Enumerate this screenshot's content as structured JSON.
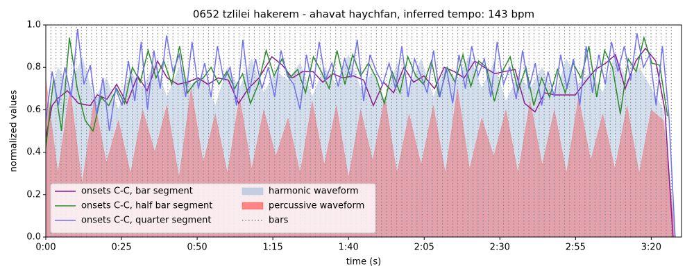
{
  "chart_data": {
    "type": "line",
    "title": "0652 tzlilei hakerem - ahavat haychfan, inferred tempo: 143 bpm",
    "x_label": "time (s)",
    "y_label": "normalized values",
    "xlim": [
      0,
      210
    ],
    "ylim": [
      0,
      1
    ],
    "xticks": [
      {
        "value": 0,
        "label": "0:00"
      },
      {
        "value": 25,
        "label": "0:25"
      },
      {
        "value": 50,
        "label": "0:50"
      },
      {
        "value": 75,
        "label": "1:15"
      },
      {
        "value": 100,
        "label": "1:40"
      },
      {
        "value": 125,
        "label": "2:05"
      },
      {
        "value": 150,
        "label": "2:30"
      },
      {
        "value": 175,
        "label": "2:55"
      },
      {
        "value": 200,
        "label": "3:20"
      }
    ],
    "yticks": [
      {
        "value": 0,
        "label": "0.0"
      },
      0.2,
      0.4,
      0.6,
      0.8,
      {
        "value": 1,
        "label": "1.0"
      }
    ],
    "legend": {
      "loc": "lower left",
      "ncol": 2
    },
    "series": [
      {
        "name": "onsets C-C, bar segment",
        "type": "line",
        "color": "#8b1a8b",
        "x": [
          0,
          2.1,
          3.7,
          7.1,
          10.8,
          14.7,
          17.0,
          20.2,
          23.4,
          26.8,
          30.3,
          33.5,
          36.9,
          40.1,
          43.6,
          46.8,
          50.2,
          53.6,
          56.9,
          60.3,
          63.7,
          66.9,
          70.4,
          74.7,
          78.2,
          81.4,
          84.8,
          88.3,
          91.5,
          94.9,
          98.1,
          101.6,
          105.0,
          108.2,
          111.6,
          114.9,
          118.3,
          121.5,
          124.9,
          128.4,
          131.6,
          135.0,
          138.2,
          141.7,
          144.9,
          148.3,
          151.5,
          155.0,
          158.2,
          161.6,
          164.8,
          168.3,
          171.7,
          174.9,
          178.1,
          181.6,
          185.0,
          188.2,
          191.4,
          194.9,
          198.1,
          201.5,
          204.5,
          207.2
        ],
        "values": [
          0.47,
          0.62,
          0.65,
          0.69,
          0.63,
          0.62,
          0.67,
          0.65,
          0.72,
          0.63,
          0.76,
          0.69,
          0.83,
          0.75,
          0.72,
          0.73,
          0.75,
          0.72,
          0.75,
          0.74,
          0.63,
          0.7,
          0.75,
          0.85,
          0.81,
          0.75,
          0.78,
          0.78,
          0.73,
          0.77,
          0.75,
          0.76,
          0.74,
          0.62,
          0.73,
          0.68,
          0.8,
          0.73,
          0.76,
          0.7,
          0.8,
          0.78,
          0.75,
          0.83,
          0.8,
          0.77,
          0.78,
          0.79,
          0.63,
          0.59,
          0.68,
          0.67,
          0.67,
          0.67,
          0.73,
          0.79,
          0.82,
          0.86,
          0.7,
          0.83,
          0.89,
          0.83,
          0.6,
          0.0
        ]
      },
      {
        "name": "onsets C-C, half bar segment",
        "type": "line",
        "color": "#2a8a2a",
        "x": [
          0,
          2.6,
          5.2,
          7.8,
          10.4,
          13,
          15.6,
          18.2,
          20.8,
          23.4,
          26,
          28.6,
          31.2,
          33.8,
          36.4,
          39,
          41.6,
          44.2,
          46.8,
          49.4,
          52,
          54.6,
          57.2,
          59.8,
          62.4,
          65,
          67.6,
          70.2,
          72.8,
          75.4,
          78,
          80.6,
          83.2,
          85.8,
          88.4,
          91,
          93.6,
          96.2,
          98.8,
          101.4,
          104,
          106.6,
          109.2,
          111.8,
          114.4,
          117,
          119.6,
          122.2,
          124.8,
          127.4,
          130,
          132.6,
          135.2,
          137.8,
          140.4,
          143,
          145.6,
          148.2,
          150.8,
          153.4,
          156,
          158.6,
          161.2,
          163.8,
          166.4,
          169,
          171.6,
          174.2,
          176.8,
          179.4,
          182,
          184.6,
          187.2,
          189.8,
          192.4,
          195,
          197.6,
          200.2,
          202.8,
          205.4
        ],
        "values": [
          0.42,
          0.75,
          0.5,
          0.94,
          0.7,
          0.55,
          0.5,
          0.66,
          0.62,
          0.7,
          0.63,
          0.8,
          0.73,
          0.88,
          0.75,
          0.83,
          0.72,
          0.9,
          0.68,
          0.73,
          0.75,
          0.8,
          0.72,
          0.78,
          0.7,
          0.77,
          0.63,
          0.72,
          0.88,
          0.76,
          0.84,
          0.75,
          0.79,
          0.68,
          0.85,
          0.78,
          0.7,
          0.88,
          0.72,
          0.86,
          0.76,
          0.82,
          0.75,
          0.63,
          0.78,
          0.68,
          0.85,
          0.76,
          0.72,
          0.83,
          0.66,
          0.8,
          0.73,
          0.86,
          0.71,
          0.83,
          0.8,
          0.64,
          0.78,
          0.85,
          0.69,
          0.8,
          0.62,
          0.75,
          0.66,
          0.79,
          0.68,
          0.82,
          0.75,
          0.9,
          0.66,
          0.88,
          0.8,
          0.58,
          0.84,
          0.78,
          0.94,
          0.82,
          0.81,
          0.57
        ]
      },
      {
        "name": "onsets C-C, quarter segment",
        "type": "line",
        "color": "#7070f0",
        "x": [
          0,
          2.1,
          4.2,
          6.3,
          8.4,
          10.5,
          12.6,
          14.7,
          16.8,
          18.9,
          21,
          23.1,
          25.2,
          27.3,
          29.4,
          31.5,
          33.6,
          35.7,
          37.8,
          39.9,
          42,
          44.1,
          46.2,
          48.3,
          50.4,
          52.5,
          54.6,
          56.7,
          58.8,
          60.9,
          63,
          65.1,
          67.2,
          69.3,
          71.4,
          73.5,
          75.6,
          77.7,
          79.8,
          81.9,
          84,
          86.1,
          88.2,
          90.3,
          92.4,
          94.5,
          96.6,
          98.7,
          100.8,
          102.9,
          105,
          107.1,
          109.2,
          111.3,
          113.4,
          115.5,
          117.6,
          119.7,
          121.8,
          123.9,
          126,
          128.1,
          130.2,
          132.3,
          134.4,
          136.5,
          138.6,
          140.7,
          142.8,
          144.9,
          147,
          149.1,
          151.2,
          153.3,
          155.4,
          157.5,
          159.6,
          161.7,
          163.8,
          165.9,
          168,
          170.1,
          172.2,
          174.3,
          176.4,
          178.5,
          180.6,
          182.7,
          184.8,
          186.9,
          189,
          191.1,
          193.2,
          195.3,
          197.4,
          199.5,
          201.6,
          203.7,
          205.8,
          207.9
        ],
        "values": [
          0.55,
          0.78,
          0.62,
          0.8,
          0.66,
          0.98,
          0.72,
          0.81,
          0.58,
          0.75,
          0.5,
          0.7,
          0.62,
          0.83,
          0.64,
          0.92,
          0.6,
          0.88,
          0.7,
          0.95,
          0.78,
          0.86,
          0.66,
          0.92,
          0.7,
          0.82,
          0.66,
          0.9,
          0.74,
          0.8,
          0.62,
          0.93,
          0.68,
          0.84,
          0.7,
          0.8,
          0.66,
          0.88,
          0.76,
          0.72,
          0.6,
          0.86,
          0.7,
          0.92,
          0.74,
          0.82,
          0.71,
          0.84,
          0.75,
          0.93,
          0.64,
          0.86,
          0.78,
          0.72,
          0.82,
          0.7,
          0.9,
          0.66,
          0.84,
          0.76,
          0.68,
          0.88,
          0.66,
          0.8,
          0.63,
          0.86,
          0.7,
          0.9,
          0.76,
          0.84,
          0.66,
          0.92,
          0.72,
          0.8,
          0.65,
          0.88,
          0.7,
          0.82,
          0.62,
          0.78,
          0.66,
          0.86,
          0.7,
          0.84,
          0.62,
          0.9,
          0.68,
          0.86,
          0.72,
          0.92,
          0.78,
          0.9,
          0.74,
          0.96,
          0.8,
          0.86,
          0.62,
          0.9,
          0.58,
          0.0
        ]
      },
      {
        "name": "harmonic waveform",
        "type": "area",
        "color": "#b0c4de",
        "alpha": 0.55,
        "x": [
          0,
          4,
          8,
          12,
          16,
          20,
          24,
          28,
          32,
          36,
          40,
          44,
          48,
          52,
          56,
          60,
          64,
          68,
          72,
          76,
          80,
          84,
          88,
          92,
          96,
          100,
          104,
          108,
          112,
          116,
          120,
          124,
          128,
          132,
          136,
          140,
          144,
          148,
          152,
          156,
          160,
          164,
          168,
          172,
          176,
          180,
          184,
          188,
          192,
          196,
          200,
          204,
          208
        ],
        "values": [
          0.55,
          0.8,
          0.7,
          0.85,
          0.65,
          0.75,
          0.6,
          0.78,
          0.7,
          0.82,
          0.66,
          0.8,
          0.72,
          0.76,
          0.62,
          0.8,
          0.7,
          0.84,
          0.68,
          0.78,
          0.74,
          0.82,
          0.66,
          0.8,
          0.72,
          0.86,
          0.7,
          0.78,
          0.64,
          0.82,
          0.7,
          0.84,
          0.66,
          0.8,
          0.74,
          0.86,
          0.7,
          0.82,
          0.64,
          0.76,
          0.7,
          0.8,
          0.66,
          0.84,
          0.72,
          0.78,
          0.68,
          0.86,
          0.74,
          0.8,
          0.7,
          0.6,
          0.0
        ]
      },
      {
        "name": "percussive waveform",
        "type": "area",
        "color": "#ff3030",
        "alpha": 0.35,
        "x": [
          0,
          4,
          8,
          12,
          16,
          20,
          24,
          28,
          32,
          36,
          40,
          44,
          48,
          52,
          56,
          60,
          64,
          68,
          72,
          76,
          80,
          84,
          88,
          92,
          96,
          100,
          104,
          108,
          112,
          116,
          120,
          124,
          128,
          132,
          136,
          140,
          144,
          148,
          152,
          156,
          160,
          164,
          168,
          172,
          176,
          180,
          184,
          188,
          192,
          196,
          200,
          204,
          208
        ],
        "values": [
          0.75,
          0.3,
          0.7,
          0.25,
          0.65,
          0.35,
          0.55,
          0.3,
          0.6,
          0.4,
          0.62,
          0.28,
          0.7,
          0.35,
          0.58,
          0.3,
          0.66,
          0.32,
          0.6,
          0.38,
          0.56,
          0.3,
          0.64,
          0.34,
          0.62,
          0.28,
          0.6,
          0.36,
          0.66,
          0.3,
          0.58,
          0.34,
          0.62,
          0.3,
          0.7,
          0.32,
          0.56,
          0.38,
          0.6,
          0.3,
          0.64,
          0.34,
          0.6,
          0.3,
          0.66,
          0.36,
          0.58,
          0.32,
          0.62,
          0.3,
          0.6,
          0.55,
          0.0
        ]
      },
      {
        "name": "bars",
        "type": "vlines",
        "color": "#888888",
        "x": [
          0,
          1.68,
          3.36,
          5.04,
          6.72,
          8.4,
          10.08,
          11.76,
          13.44,
          15.12,
          16.8,
          18.48,
          20.16,
          21.84,
          23.52,
          25.2,
          26.88,
          28.56,
          30.24,
          31.92,
          33.6,
          35.28,
          36.96,
          38.64,
          40.32,
          42,
          43.68,
          45.36,
          47.04,
          48.72,
          50.4,
          52.08,
          53.76,
          55.44,
          57.12,
          58.8,
          60.48,
          62.16,
          63.84,
          65.52,
          67.2,
          68.88,
          70.56,
          72.24,
          73.92,
          75.6,
          77.28,
          78.96,
          80.64,
          82.32,
          84,
          85.68,
          87.36,
          89.04,
          90.72,
          92.4,
          94.08,
          95.76,
          97.44,
          99.12,
          100.8,
          102.48,
          104.16,
          105.84,
          107.52,
          109.2,
          110.88,
          112.56,
          114.24,
          115.92,
          117.6,
          119.28,
          120.96,
          122.64,
          124.32,
          126,
          127.68,
          129.36,
          131.04,
          132.72,
          134.4,
          136.08,
          137.76,
          139.44,
          141.12,
          142.8,
          144.48,
          146.16,
          147.84,
          149.52,
          151.2,
          152.88,
          154.56,
          156.24,
          157.92,
          159.6,
          161.28,
          162.96,
          164.64,
          166.32,
          168,
          169.68,
          171.36,
          173.04,
          174.72,
          176.4,
          178.08,
          179.76,
          181.44,
          183.12,
          184.8,
          186.48,
          188.16,
          189.84,
          191.52,
          193.2,
          194.88,
          196.56,
          198.24,
          199.92,
          201.6,
          203.28,
          204.96,
          206.64
        ]
      }
    ]
  }
}
